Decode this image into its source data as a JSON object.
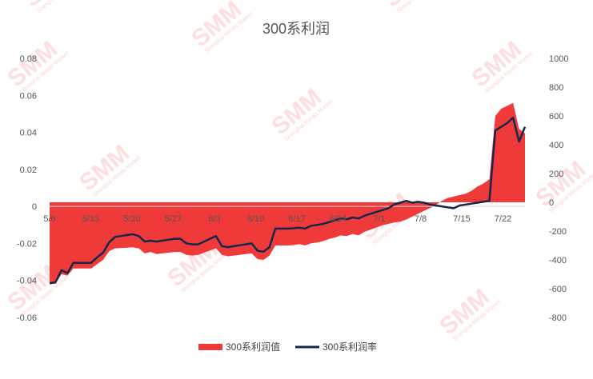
{
  "chart_data": {
    "type": "area",
    "title": "300系利润",
    "x_ticks": [
      "5/6",
      "5/13",
      "5/20",
      "5/27",
      "6/3",
      "6/10",
      "6/17",
      "6/24",
      "7/1",
      "7/8",
      "7/15",
      "7/22"
    ],
    "left_axis": {
      "ticks": [
        "0.08",
        "0.06",
        "0.04",
        "0.02",
        "0",
        "-0.02",
        "-0.04",
        "-0.06"
      ],
      "ylim": [
        -0.06,
        0.08
      ]
    },
    "right_axis": {
      "ticks": [
        "1000",
        "800",
        "600",
        "400",
        "200",
        "0",
        "-200",
        "-400",
        "-600",
        "-800"
      ],
      "ylim": [
        -800,
        1000
      ]
    },
    "grid": false,
    "legend_position": "bottom",
    "series": [
      {
        "name": "300系利润值",
        "kind": "area",
        "axis": "right",
        "color": "#f03a3a",
        "x": [
          0,
          1,
          2,
          3,
          4,
          5,
          6,
          7,
          8,
          9,
          10,
          11,
          12,
          13,
          14,
          15,
          16,
          17,
          18,
          19,
          20,
          21,
          22,
          23,
          24,
          25,
          26,
          27,
          28,
          29,
          30,
          31,
          32,
          33,
          34,
          35,
          36,
          37,
          38,
          39,
          40,
          41,
          42,
          43,
          44,
          45,
          46,
          47,
          48,
          49,
          50,
          51,
          52,
          53,
          54,
          55,
          56,
          57,
          58,
          59,
          60,
          61,
          62,
          63,
          64,
          65,
          66,
          67,
          68,
          69,
          70,
          71,
          72,
          73,
          74,
          75,
          76,
          77,
          78,
          79,
          80
        ],
        "values": [
          -570,
          -565,
          -500,
          -510,
          -460,
          -460,
          -460,
          -460,
          -430,
          -400,
          -340,
          -320,
          -318,
          -315,
          -312,
          -320,
          -355,
          -345,
          -360,
          -355,
          -350,
          -345,
          -345,
          -365,
          -370,
          -365,
          -350,
          -335,
          -320,
          -365,
          -375,
          -370,
          -365,
          -360,
          -355,
          -395,
          -400,
          -370,
          -300,
          -300,
          -300,
          -298,
          -290,
          -300,
          -285,
          -280,
          -270,
          -255,
          -245,
          -230,
          -235,
          -220,
          -230,
          -205,
          -190,
          -175,
          -160,
          -150,
          -140,
          -135,
          -120,
          -100,
          -80,
          -60,
          -40,
          -20,
          10,
          30,
          40,
          50,
          60,
          80,
          110,
          130,
          160,
          600,
          650,
          670,
          690,
          510,
          480
        ]
      },
      {
        "name": "300系利润率",
        "kind": "line",
        "axis": "left",
        "color": "#14284b",
        "x": [
          0,
          1,
          2,
          3,
          4,
          5,
          6,
          7,
          8,
          9,
          10,
          11,
          12,
          13,
          14,
          15,
          16,
          17,
          18,
          19,
          20,
          21,
          22,
          23,
          24,
          25,
          26,
          27,
          28,
          29,
          30,
          31,
          32,
          33,
          34,
          35,
          36,
          37,
          38,
          39,
          40,
          41,
          42,
          43,
          44,
          45,
          46,
          47,
          48,
          49,
          50,
          51,
          52,
          53,
          54,
          55,
          56,
          57,
          58,
          59,
          60,
          61,
          62,
          63,
          64,
          65,
          66,
          67,
          68,
          69,
          70,
          71,
          72,
          73,
          74,
          75,
          76,
          77,
          78,
          79,
          80
        ],
        "values": [
          -0.0415,
          -0.041,
          -0.0345,
          -0.036,
          -0.0305,
          -0.0305,
          -0.0305,
          -0.0305,
          -0.0275,
          -0.025,
          -0.0195,
          -0.0165,
          -0.016,
          -0.0155,
          -0.015,
          -0.016,
          -0.019,
          -0.0185,
          -0.019,
          -0.0185,
          -0.018,
          -0.0175,
          -0.0175,
          -0.02,
          -0.0205,
          -0.0205,
          -0.019,
          -0.0175,
          -0.016,
          -0.0215,
          -0.022,
          -0.0215,
          -0.021,
          -0.0205,
          -0.02,
          -0.024,
          -0.0245,
          -0.022,
          -0.012,
          -0.012,
          -0.012,
          -0.0118,
          -0.0115,
          -0.012,
          -0.0105,
          -0.01,
          -0.0095,
          -0.0085,
          -0.0075,
          -0.0065,
          -0.007,
          -0.006,
          -0.0065,
          -0.005,
          -0.004,
          -0.003,
          -0.002,
          -0.001,
          0.001,
          0.002,
          0.003,
          0.002,
          0.0025,
          0.002,
          0.001,
          0.0005,
          0.0,
          -0.0005,
          -0.001,
          0.0005,
          0.001,
          0.0015,
          0.002,
          0.0025,
          0.003,
          0.041,
          0.043,
          0.045,
          0.048,
          0.035,
          0.043
        ]
      }
    ]
  }
}
